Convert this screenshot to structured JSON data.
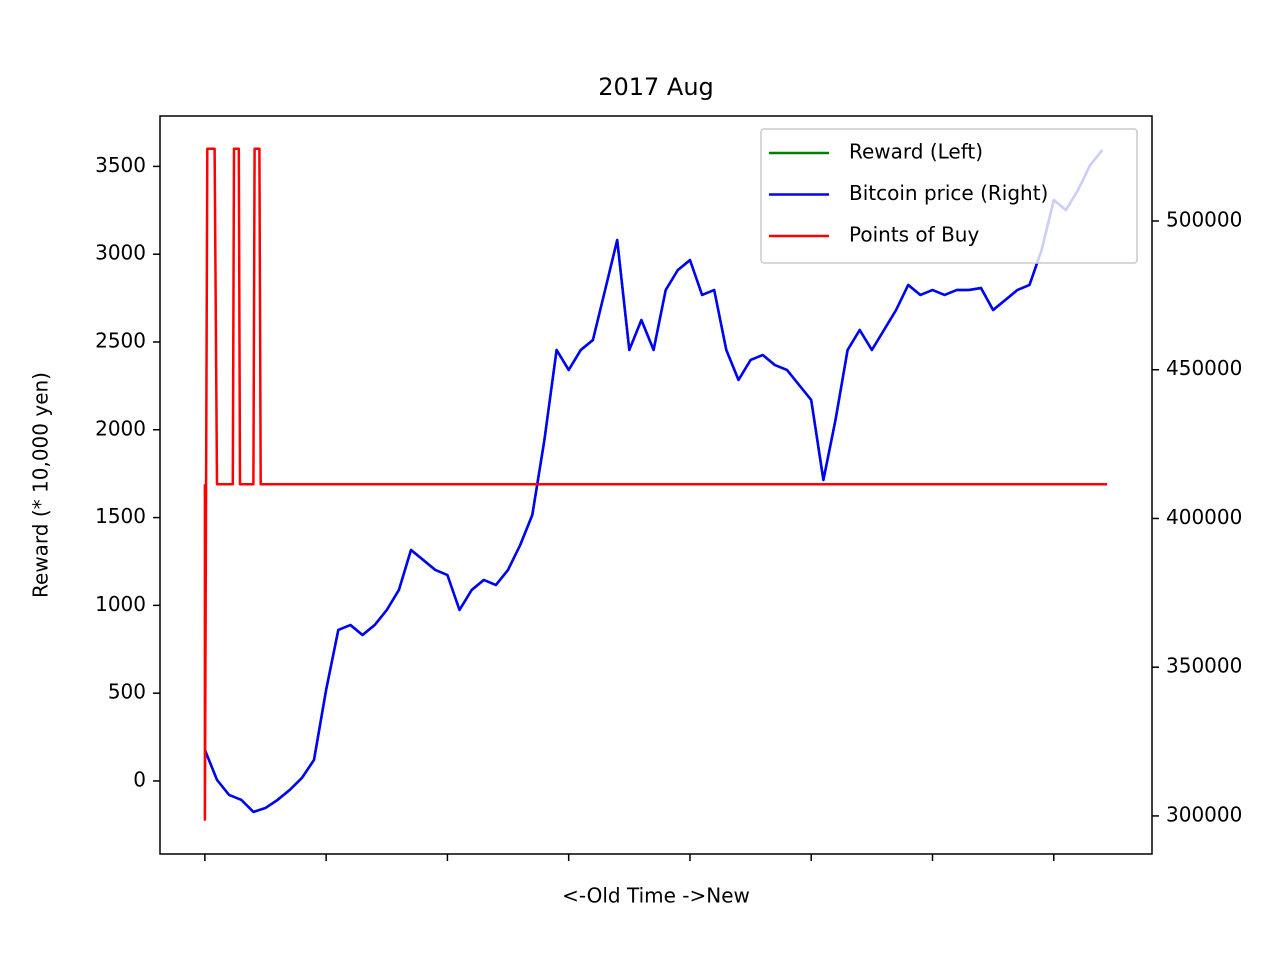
{
  "chart_data": {
    "type": "line",
    "title": "2017 Aug",
    "y_label": "Reward (* 10,000 yen)",
    "x_label": "<-Old  Time  ->New",
    "x": [
      0,
      10,
      20,
      30,
      40,
      50,
      60,
      70,
      80,
      90,
      100,
      110,
      120,
      130,
      140,
      150,
      160,
      170,
      180,
      190,
      200,
      210,
      220,
      230,
      240,
      250,
      260,
      270,
      280,
      290,
      300,
      310,
      320,
      330,
      340,
      350,
      360,
      370,
      380,
      390,
      400,
      410,
      420,
      430,
      440,
      450,
      460,
      470,
      480,
      490,
      500,
      510,
      520,
      530,
      540,
      550,
      560,
      570,
      580,
      590,
      600,
      610,
      620,
      630,
      640,
      650,
      660,
      670,
      680,
      690,
      700,
      710,
      720,
      730,
      740
    ],
    "xlim": [
      -37,
      781
    ],
    "xticks": [
      0,
      100,
      200,
      300,
      400,
      500,
      600,
      700
    ],
    "ylim": [
      -416,
      3787
    ],
    "yticks": [
      0,
      500,
      1000,
      1500,
      2000,
      2500,
      3000,
      3500
    ],
    "y2lim": [
      287200,
      535300
    ],
    "y2ticks": [
      300000,
      350000,
      400000,
      450000,
      500000
    ],
    "legend": "upper right",
    "series": [
      {
        "name": "Reward (Left)",
        "color": "#008000",
        "values": [
          177,
          6,
          -80,
          -108,
          -177,
          -154,
          -108,
          -51,
          17,
          120,
          518,
          860,
          888,
          831,
          888,
          974,
          1088,
          1316,
          1259,
          1202,
          1173,
          974,
          1088,
          1145,
          1116,
          1202,
          1344,
          1515,
          1942,
          2455,
          2341,
          2455,
          2511,
          2796,
          3081,
          2455,
          2625,
          2455,
          2796,
          2910,
          2967,
          2768,
          2796,
          2455,
          2284,
          2398,
          2426,
          2369,
          2341,
          2255,
          2170,
          1714,
          2056,
          2455,
          2568,
          2455,
          2568,
          2682,
          2825,
          2768,
          2796,
          2768,
          2796,
          2796,
          2808,
          2682,
          2739,
          2796,
          2825,
          3024,
          3309,
          3252,
          3366,
          3508,
          3594
        ]
      },
      {
        "name": "Bitcoin price (Right)",
        "color": "#0000ff",
        "axis": "y2",
        "values": [
          322180,
          312100,
          307060,
          305380,
          301340,
          302690,
          305380,
          308740,
          312770,
          318820,
          342350,
          362510,
          364190,
          360830,
          364190,
          369240,
          375960,
          389400,
          386040,
          382680,
          381000,
          369240,
          375960,
          379320,
          377640,
          382680,
          391080,
          401170,
          426370,
          456620,
          449900,
          456620,
          459980,
          476790,
          493600,
          456620,
          466710,
          456620,
          476790,
          483510,
          486870,
          475110,
          476790,
          456620,
          446540,
          453260,
          454940,
          451580,
          449900,
          444860,
          439820,
          412930,
          433100,
          456620,
          463350,
          456620,
          463350,
          470070,
          478470,
          475110,
          476790,
          475110,
          476790,
          476790,
          477460,
          470070,
          473430,
          476790,
          478470,
          490230,
          507040,
          503680,
          510400,
          518800,
          523840
        ]
      },
      {
        "name": "Points of Buy",
        "color": "#ff0000",
        "x": [
          0,
          0,
          2,
          8,
          10,
          23,
          24,
          28,
          29,
          40,
          41,
          45,
          46,
          744
        ],
        "values": [
          1690,
          -220,
          3600,
          3600,
          1690,
          1690,
          3600,
          3600,
          1690,
          1690,
          3600,
          3600,
          1690,
          1690
        ]
      }
    ]
  }
}
